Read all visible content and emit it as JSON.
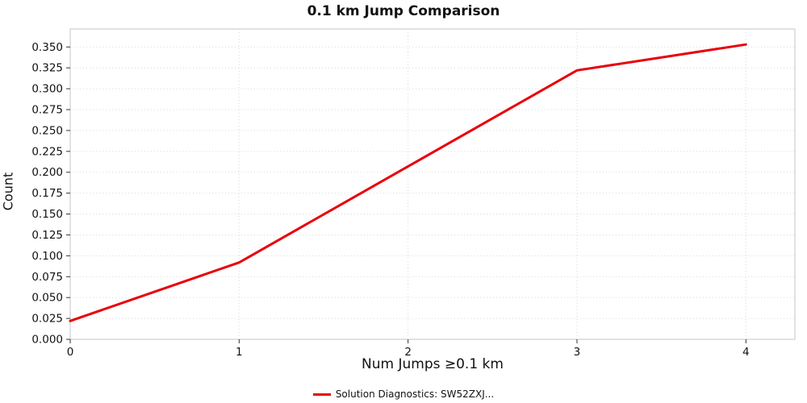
{
  "title": "0.1 km Jump Comparison",
  "axes": {
    "xlabel": "Num Jumps ≥0.1 km",
    "ylabel": "Count"
  },
  "legend": {
    "label": "Solution Diagnostics: SW52ZXJ..."
  },
  "colors": {
    "series": "#e8000b",
    "grid": "#d9d9d9",
    "border": "#c4c4c4",
    "tick": "#333333",
    "text": "#111111"
  },
  "chart_data": {
    "type": "line",
    "title": "0.1 km Jump Comparison",
    "xlabel": "Num Jumps ≥0.1 km",
    "ylabel": "Count",
    "x": [
      0,
      1,
      2,
      3,
      4
    ],
    "series": [
      {
        "name": "Solution Diagnostics: SW52ZXJ...",
        "values": [
          0.022,
          0.092,
          0.207,
          0.322,
          0.353
        ],
        "color": "#e8000b"
      }
    ],
    "xlim": [
      0,
      4.29
    ],
    "ylim": [
      0,
      0.3715
    ],
    "xticks": [
      0,
      1,
      2,
      3,
      4
    ],
    "xtick_labels": [
      "0",
      "1",
      "2",
      "3",
      "4"
    ],
    "yticks": [
      0.0,
      0.025,
      0.05,
      0.075,
      0.1,
      0.125,
      0.15,
      0.175,
      0.2,
      0.225,
      0.25,
      0.275,
      0.3,
      0.325,
      0.35
    ],
    "ytick_labels": [
      "0.000",
      "0.025",
      "0.050",
      "0.075",
      "0.100",
      "0.125",
      "0.150",
      "0.175",
      "0.200",
      "0.225",
      "0.250",
      "0.275",
      "0.300",
      "0.325",
      "0.350"
    ],
    "grid": true,
    "legend_position": "bottom"
  }
}
